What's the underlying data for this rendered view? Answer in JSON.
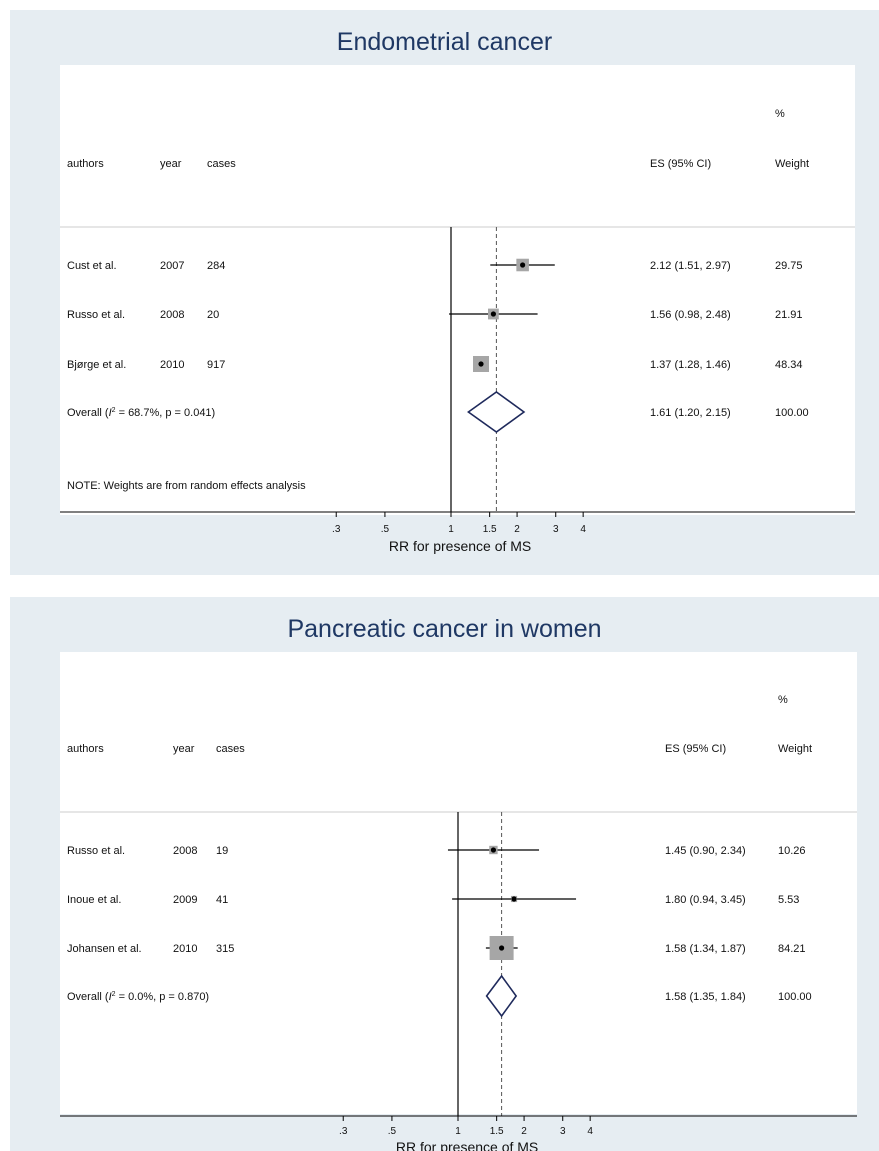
{
  "chart_data": [
    {
      "type": "forest",
      "title": "Endometrial cancer",
      "xlabel": "RR for presence of MS",
      "columns": {
        "authors": "authors",
        "year": "year",
        "cases": "cases",
        "es": "ES (95% CI)",
        "weight_pct": "%",
        "weight": "Weight"
      },
      "x_ticks": [
        {
          "value": 0.3,
          "label": ".3"
        },
        {
          "value": 0.5,
          "label": ".5"
        },
        {
          "value": 1,
          "label": "1"
        },
        {
          "value": 1.5,
          "label": "1.5"
        },
        {
          "value": 2,
          "label": "2"
        },
        {
          "value": 3,
          "label": "3"
        },
        {
          "value": 4,
          "label": "4"
        }
      ],
      "x_scale": "log",
      "null_line": 1,
      "overall_line": 1.61,
      "studies": [
        {
          "author": "Cust et al.",
          "year": "2007",
          "cases": "284",
          "es": 2.12,
          "lo": 1.51,
          "hi": 2.97,
          "es_text": "2.12 (1.51, 2.97)",
          "weight": 29.75,
          "weight_text": "29.75"
        },
        {
          "author": "Russo et al.",
          "year": "2008",
          "cases": "20",
          "es": 1.56,
          "lo": 0.98,
          "hi": 2.48,
          "es_text": "1.56 (0.98, 2.48)",
          "weight": 21.91,
          "weight_text": "21.91"
        },
        {
          "author": "Bjørge et al.",
          "year": "2010",
          "cases": "917",
          "es": 1.37,
          "lo": 1.28,
          "hi": 1.46,
          "es_text": "1.37 (1.28, 1.46)",
          "weight": 48.34,
          "weight_text": "48.34"
        }
      ],
      "overall": {
        "label_pre": "Overall  (",
        "label_i": "I",
        "label_sup": "2",
        "label_post": " = 68.7%, p = 0.041)",
        "es": 1.61,
        "lo": 1.2,
        "hi": 2.15,
        "es_text": "1.61 (1.20, 2.15)",
        "weight_text": "100.00"
      },
      "note": "NOTE: Weights are from random effects analysis"
    },
    {
      "type": "forest",
      "title": "Pancreatic cancer in women",
      "xlabel": "RR for presence of MS",
      "columns": {
        "authors": "authors",
        "year": "year",
        "cases": "cases",
        "es": "ES (95% CI)",
        "weight_pct": "%",
        "weight": "Weight"
      },
      "x_ticks": [
        {
          "value": 0.3,
          "label": ".3"
        },
        {
          "value": 0.5,
          "label": ".5"
        },
        {
          "value": 1,
          "label": "1"
        },
        {
          "value": 1.5,
          "label": "1.5"
        },
        {
          "value": 2,
          "label": "2"
        },
        {
          "value": 3,
          "label": "3"
        },
        {
          "value": 4,
          "label": "4"
        }
      ],
      "x_scale": "log",
      "null_line": 1,
      "overall_line": 1.58,
      "studies": [
        {
          "author": "Russo et al.",
          "year": "2008",
          "cases": "19",
          "es": 1.45,
          "lo": 0.9,
          "hi": 2.34,
          "es_text": "1.45 (0.90, 2.34)",
          "weight": 10.26,
          "weight_text": "10.26"
        },
        {
          "author": "Inoue et al.",
          "year": "2009",
          "cases": "41",
          "es": 1.8,
          "lo": 0.94,
          "hi": 3.45,
          "es_text": "1.80 (0.94, 3.45)",
          "weight": 5.53,
          "weight_text": "5.53"
        },
        {
          "author": "Johansen et al.",
          "year": "2010",
          "cases": "315",
          "es": 1.58,
          "lo": 1.34,
          "hi": 1.87,
          "es_text": "1.58 (1.34, 1.87)",
          "weight": 84.21,
          "weight_text": "84.21"
        }
      ],
      "overall": {
        "label_pre": "Overall  (",
        "label_i": "I",
        "label_sup": "2",
        "label_post": " = 0.0%, p = 0.870)",
        "es": 1.58,
        "lo": 1.35,
        "hi": 1.84,
        "es_text": "1.58 (1.35, 1.84)",
        "weight_text": "100.00"
      },
      "note": ""
    }
  ],
  "colors": {
    "panel_bg": "#e6edf2",
    "title": "#1f3864",
    "diamond": "#1f2a5c",
    "weight_box": "#a6a6a6",
    "line": "#000000"
  }
}
